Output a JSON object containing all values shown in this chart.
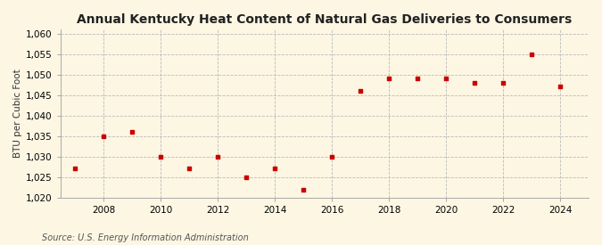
{
  "title": "Annual Kentucky Heat Content of Natural Gas Deliveries to Consumers",
  "ylabel": "BTU per Cubic Foot",
  "source": "Source: U.S. Energy Information Administration",
  "years": [
    2007,
    2008,
    2009,
    2010,
    2011,
    2012,
    2013,
    2014,
    2015,
    2016,
    2017,
    2018,
    2019,
    2020,
    2021,
    2022,
    2023,
    2024
  ],
  "values": [
    1027,
    1035,
    1036,
    1030,
    1027,
    1030,
    1025,
    1027,
    1022,
    1030,
    1046,
    1049,
    1049,
    1049,
    1048,
    1048,
    1055,
    1047
  ],
  "ylim": [
    1020,
    1061
  ],
  "yticks": [
    1020,
    1025,
    1030,
    1035,
    1040,
    1045,
    1050,
    1055,
    1060
  ],
  "xticks": [
    2008,
    2010,
    2012,
    2014,
    2016,
    2018,
    2020,
    2022,
    2024
  ],
  "xlim": [
    2006.5,
    2025
  ],
  "marker_color": "#cc0000",
  "marker": "s",
  "marker_size": 3.5,
  "grid_color": "#bbbbbb",
  "background_color": "#fdf6e3",
  "title_fontsize": 10,
  "label_fontsize": 7.5,
  "tick_fontsize": 7.5,
  "source_fontsize": 7
}
